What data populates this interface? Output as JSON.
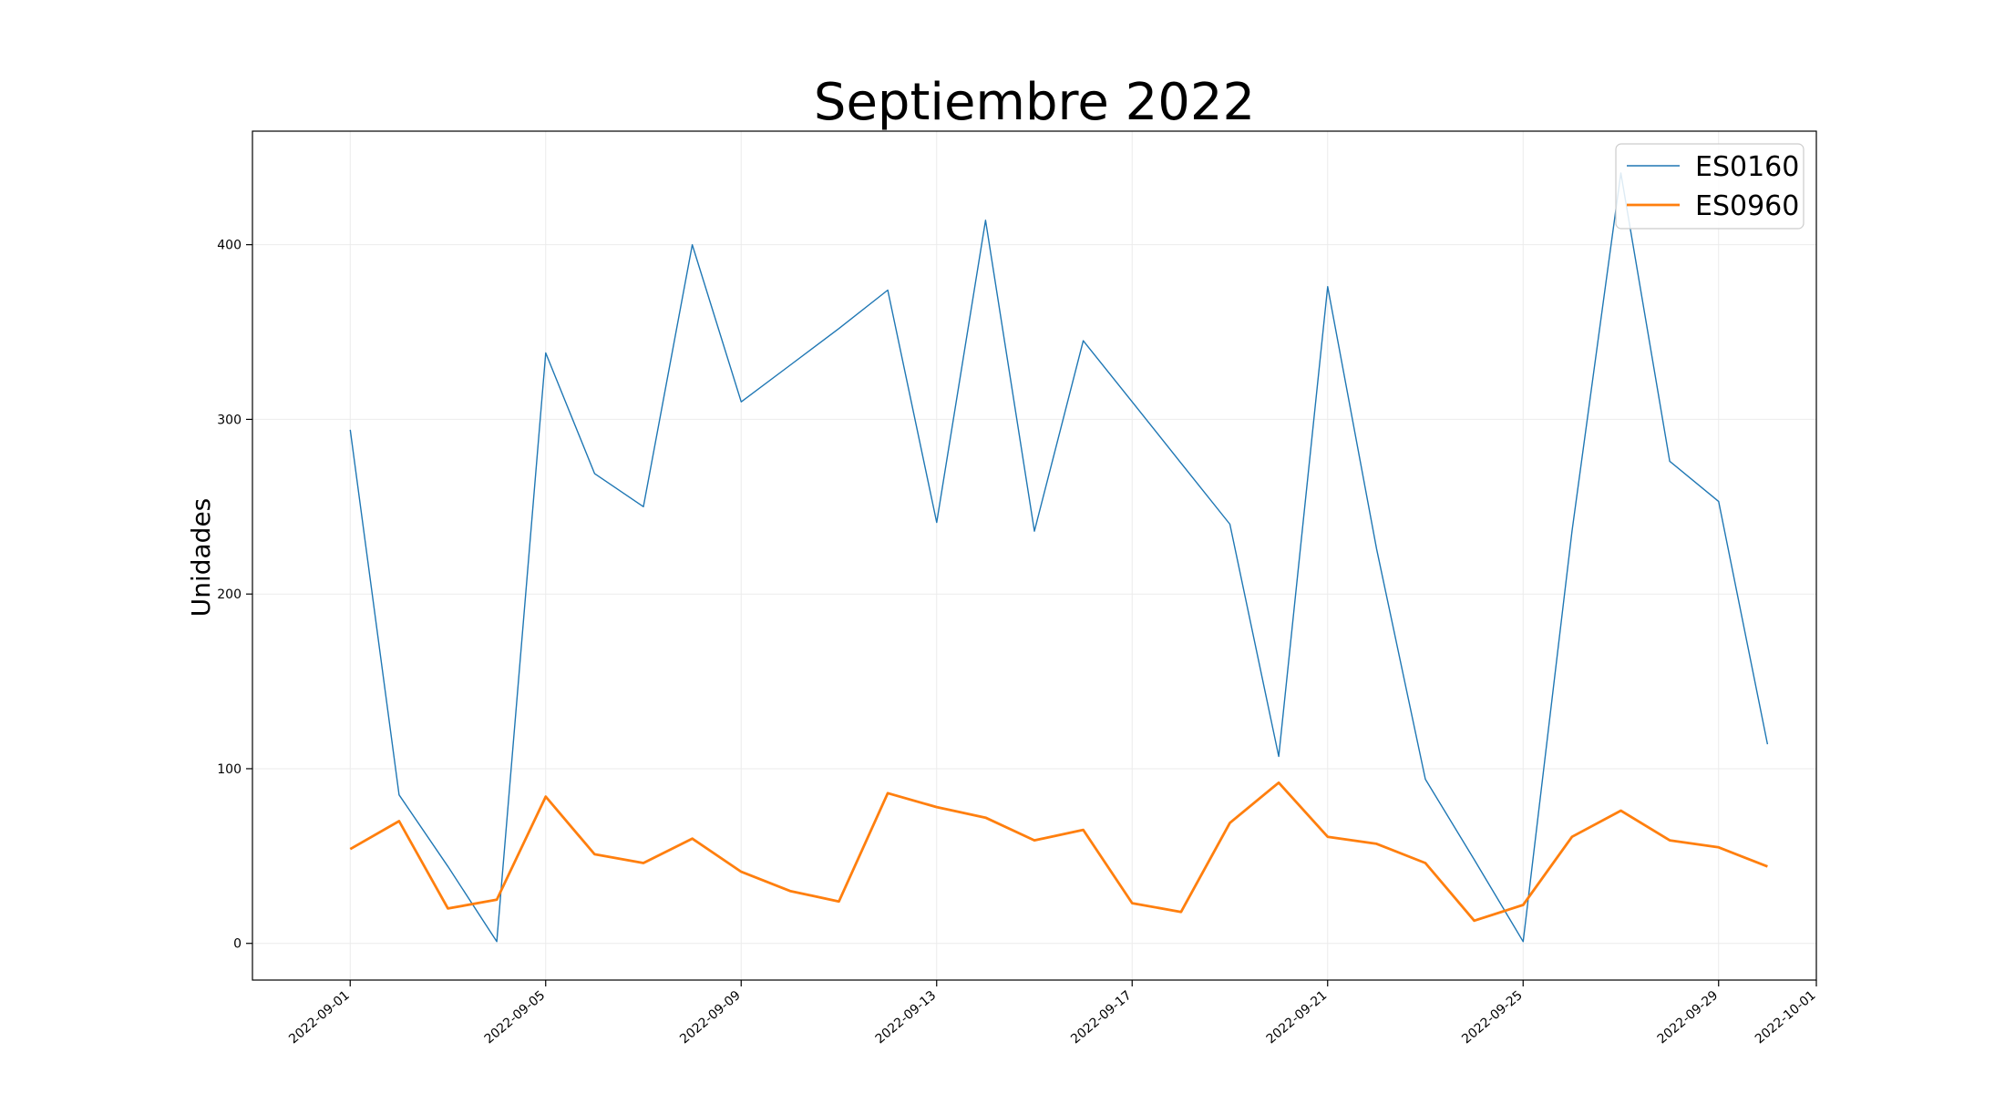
{
  "chart_data": {
    "type": "line",
    "title": "Septiembre 2022",
    "xlabel": "",
    "ylabel": "Unidades",
    "xlim": [
      "2022-08-30",
      "2022-10-01"
    ],
    "ylim": [
      -21,
      465
    ],
    "grid": true,
    "legend_position": "top-right",
    "x_ticks": [
      "2022-09-01",
      "2022-09-05",
      "2022-09-09",
      "2022-09-13",
      "2022-09-17",
      "2022-09-21",
      "2022-09-25",
      "2022-09-29",
      "2022-10-01"
    ],
    "y_ticks": [
      0,
      100,
      200,
      300,
      400
    ],
    "x": [
      "2022-09-01",
      "2022-09-02",
      "2022-09-03",
      "2022-09-04",
      "2022-09-05",
      "2022-09-06",
      "2022-09-07",
      "2022-09-08",
      "2022-09-09",
      "2022-09-10",
      "2022-09-11",
      "2022-09-12",
      "2022-09-13",
      "2022-09-14",
      "2022-09-15",
      "2022-09-16",
      "2022-09-17",
      "2022-09-18",
      "2022-09-19",
      "2022-09-20",
      "2022-09-21",
      "2022-09-22",
      "2022-09-23",
      "2022-09-24",
      "2022-09-25",
      "2022-09-26",
      "2022-09-27",
      "2022-09-28",
      "2022-09-29",
      "2022-09-30"
    ],
    "series": [
      {
        "name": "ES0160",
        "color": "#1f77b4",
        "values": [
          294,
          85,
          44,
          1,
          338,
          269,
          250,
          400,
          310,
          331,
          352,
          374,
          241,
          414,
          236,
          345,
          310,
          275,
          240,
          107,
          376,
          226,
          94,
          48,
          1,
          236,
          441,
          276,
          253,
          114
        ]
      },
      {
        "name": "ES0960",
        "color": "#ff7f0e",
        "values": [
          54,
          70,
          20,
          25,
          84,
          51,
          46,
          60,
          41,
          30,
          24,
          86,
          78,
          72,
          59,
          65,
          23,
          18,
          69,
          92,
          61,
          57,
          46,
          13,
          22,
          61,
          76,
          59,
          55,
          44
        ]
      }
    ]
  }
}
